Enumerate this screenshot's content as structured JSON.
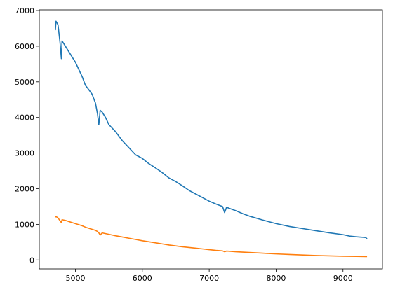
{
  "chart_data": {
    "type": "line",
    "x": [
      4700,
      4710,
      4740,
      4770,
      4790,
      4800,
      4850,
      4900,
      4950,
      5000,
      5050,
      5100,
      5150,
      5200,
      5250,
      5300,
      5330,
      5350,
      5370,
      5400,
      5450,
      5500,
      5600,
      5700,
      5800,
      5900,
      6000,
      6100,
      6200,
      6300,
      6400,
      6500,
      6600,
      6700,
      6800,
      6900,
      7000,
      7100,
      7200,
      7230,
      7260,
      7300,
      7400,
      7500,
      7600,
      7800,
      8000,
      8200,
      8400,
      8600,
      8800,
      9000,
      9100,
      9200,
      9340,
      9360
    ],
    "series": [
      {
        "color": "#1f77b4",
        "values": [
          6450,
          6700,
          6600,
          6100,
          5650,
          6150,
          6000,
          5850,
          5700,
          5550,
          5350,
          5150,
          4900,
          4780,
          4650,
          4400,
          4100,
          3800,
          4200,
          4150,
          4000,
          3800,
          3600,
          3350,
          3150,
          2950,
          2850,
          2700,
          2580,
          2450,
          2300,
          2200,
          2080,
          1950,
          1850,
          1750,
          1650,
          1570,
          1500,
          1330,
          1480,
          1450,
          1380,
          1300,
          1230,
          1120,
          1020,
          940,
          880,
          820,
          760,
          710,
          670,
          650,
          630,
          590
        ]
      },
      {
        "color": "#ff7f0e",
        "values": [
          1200,
          1220,
          1180,
          1100,
          1050,
          1130,
          1110,
          1080,
          1050,
          1020,
          990,
          960,
          920,
          890,
          860,
          830,
          800,
          760,
          700,
          760,
          740,
          720,
          680,
          645,
          610,
          575,
          540,
          510,
          480,
          450,
          420,
          395,
          370,
          350,
          330,
          310,
          290,
          270,
          255,
          230,
          250,
          245,
          230,
          220,
          210,
          190,
          170,
          155,
          140,
          125,
          115,
          105,
          102,
          100,
          96,
          95
        ]
      }
    ],
    "xlim": [
      4460,
      9590
    ],
    "ylim": [
      -250,
      7020
    ],
    "xticks": [
      5000,
      6000,
      7000,
      8000,
      9000
    ],
    "yticks": [
      0,
      1000,
      2000,
      3000,
      4000,
      5000,
      6000,
      7000
    ]
  }
}
